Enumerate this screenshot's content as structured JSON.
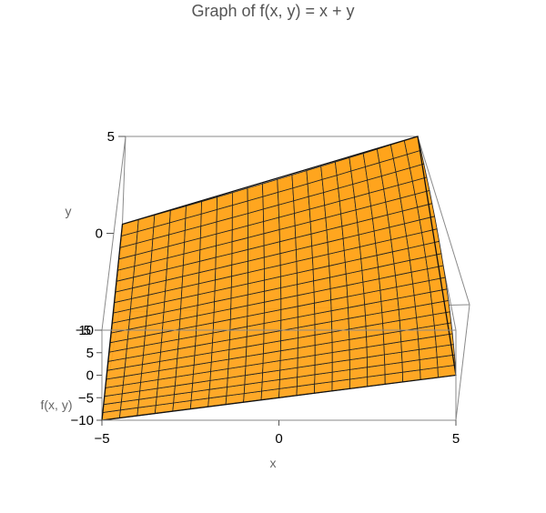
{
  "title": "Graph of f(x, y) = x + y",
  "colors": {
    "surface": "#ffa319",
    "mesh": "#222222",
    "box": "#8a8a8a"
  },
  "chart_data": {
    "type": "surface3d",
    "function": "f(x, y) = x + y",
    "title": "Graph of f(x, y) = x + y",
    "xlabel": "x",
    "ylabel": "y",
    "zlabel": "f(x, y)",
    "xlim": [
      -5,
      5
    ],
    "ylim": [
      -5,
      5
    ],
    "zlim": [
      -10,
      10
    ],
    "x_ticks": [
      "−5",
      "0",
      "5"
    ],
    "y_ticks": [
      "−5",
      "0",
      "5"
    ],
    "z_ticks": [
      "−10",
      "−5",
      "0",
      "5",
      "10"
    ],
    "mesh_divisions": 20,
    "surface_color": "#ffa319"
  }
}
